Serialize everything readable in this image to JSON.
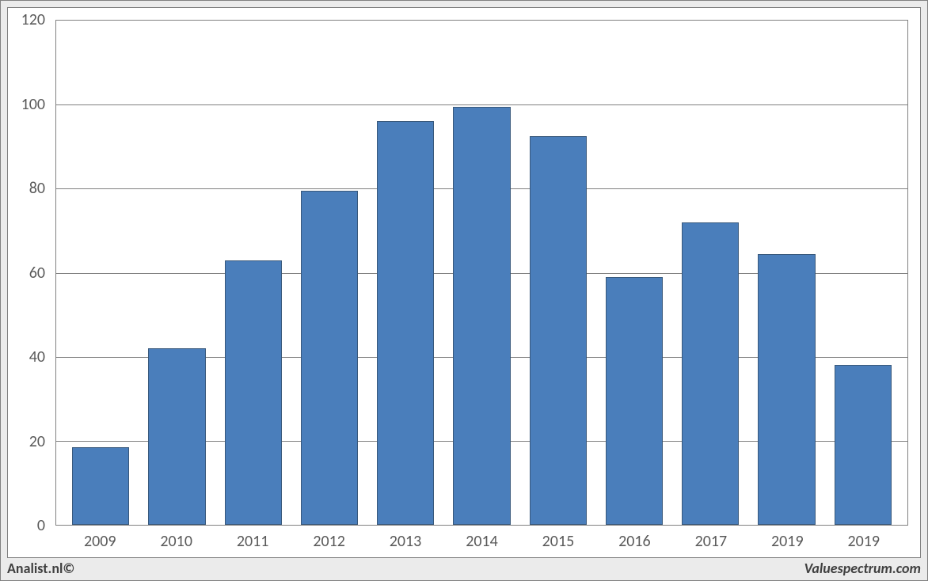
{
  "chart": {
    "type": "bar",
    "categories": [
      "2009",
      "2010",
      "2011",
      "2012",
      "2013",
      "2014",
      "2015",
      "2016",
      "2017",
      "2019",
      "2019"
    ],
    "values": [
      18.5,
      42,
      63,
      79.5,
      96,
      99.5,
      92.5,
      59,
      72,
      64.5,
      38
    ],
    "bar_fill_color": "#4a7ebb",
    "bar_border_color": "#38587b",
    "bar_width_ratio": 0.72,
    "y_axis": {
      "min": 0,
      "max": 120,
      "ticks": [
        0,
        20,
        40,
        60,
        80,
        100,
        120
      ],
      "tick_fontsize": 20,
      "tick_color": "#595959"
    },
    "x_axis": {
      "tick_fontsize": 20,
      "tick_color": "#595959"
    },
    "grid_color": "#808080",
    "plot_background": "#ffffff",
    "panel_background": "#ffffff",
    "outer_background": "#ebebeb",
    "border_color": "#808080"
  },
  "footer": {
    "left": "Analist.nl©",
    "right": "Valuespectrum.com",
    "fontsize": 18,
    "color": "#404040"
  }
}
